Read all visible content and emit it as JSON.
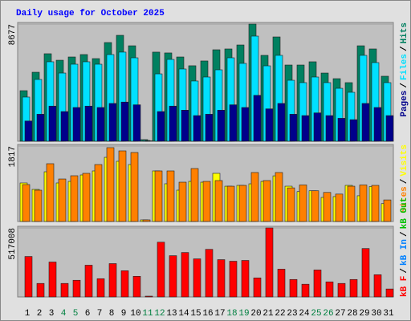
{
  "chart_data": [
    {
      "type": "bar",
      "title": "Daily usage for October 2025",
      "ylim": [
        0,
        8677
      ],
      "yticks": [
        8677
      ],
      "legend_separator": "/",
      "series": [
        {
          "name": "Pages",
          "color": "#00008b",
          "values": [
            1500,
            2000,
            2600,
            2200,
            2500,
            2600,
            2500,
            2800,
            2900,
            2700,
            30,
            2200,
            2600,
            2300,
            1900,
            2000,
            2300,
            2700,
            2500,
            3400,
            2400,
            2800,
            2000,
            1900,
            2100,
            1900,
            1700,
            1600,
            2800,
            2500,
            1900
          ]
        },
        {
          "name": "Files",
          "color": "#00e0ff",
          "values": [
            3270,
            4575,
            5885,
            5050,
            5705,
            5885,
            5705,
            6420,
            6600,
            6180,
            60,
            4990,
            6060,
            5350,
            4460,
            4755,
            5290,
            6180,
            5765,
            7785,
            5585,
            6360,
            4515,
            4340,
            4755,
            4340,
            3920,
            3625,
            6360,
            5825,
            4340
          ]
        },
        {
          "name": "Hits",
          "color": "#008060",
          "values": [
            3745,
            5110,
            6480,
            6000,
            6240,
            6420,
            6120,
            7310,
            7845,
            7070,
            120,
            6600,
            6540,
            6240,
            5590,
            5945,
            6775,
            6835,
            7130,
            8677,
            6360,
            7725,
            5645,
            5645,
            5885,
            5050,
            4635,
            4340,
            7070,
            6835,
            4815
          ]
        }
      ]
    },
    {
      "type": "bar",
      "ylim": [
        0,
        1817
      ],
      "yticks": [
        1817
      ],
      "legend_separator": "/",
      "series": [
        {
          "name": "Sites",
          "color": "#ff8000",
          "values": [
            890,
            754,
            1392,
            1024,
            1102,
            1160,
            1372,
            1779,
            1701,
            1662,
            39,
            1218,
            1218,
            947,
            1276,
            966,
            986,
            850,
            870,
            1180,
            986,
            1180,
            810,
            880,
            740,
            700,
            660,
            850,
            880,
            870,
            520
          ]
        },
        {
          "name": "Visits",
          "color": "#ffff00",
          "values": [
            928,
            773,
            1198,
            928,
            966,
            1121,
            1218,
            1546,
            1450,
            1372,
            39,
            1218,
            909,
            754,
            966,
            947,
            1160,
            850,
            870,
            908,
            966,
            1100,
            850,
            720,
            740,
            580,
            600,
            870,
            620,
            840,
            430
          ]
        }
      ]
    },
    {
      "type": "bar",
      "ylim": [
        0,
        517008
      ],
      "yticks": [
        517008
      ],
      "legend_separator": "/",
      "categories": [
        "1",
        "2",
        "3",
        "4",
        "5",
        "6",
        "7",
        "8",
        "9",
        "10",
        "11",
        "12",
        "13",
        "14",
        "15",
        "16",
        "17",
        "18",
        "19",
        "20",
        "21",
        "22",
        "23",
        "24",
        "25",
        "26",
        "27",
        "28",
        "29",
        "30",
        "31"
      ],
      "category_colors": [
        "#000000",
        "#000000",
        "#000000",
        "#008040",
        "#008040",
        "#000000",
        "#000000",
        "#000000",
        "#000000",
        "#000000",
        "#008040",
        "#008040",
        "#000000",
        "#000000",
        "#000000",
        "#000000",
        "#000000",
        "#008040",
        "#008040",
        "#000000",
        "#000000",
        "#000000",
        "#000000",
        "#000000",
        "#008040",
        "#008040",
        "#000000",
        "#000000",
        "#000000",
        "#000000",
        "#000000"
      ],
      "series": [
        {
          "name": "kB F",
          "color": "#ff0000",
          "values": [
            303090,
            101030,
            261490,
            101030,
            124800,
            237720,
            136690,
            249600,
            196120,
            154520,
            5940,
            410070,
            309030,
            332800,
            285260,
            356580,
            279320,
            267430,
            273380,
            142630,
            517008,
            208000,
            130750,
            95090,
            202060,
            112920,
            101030,
            130750,
            362520,
            166400,
            59430
          ]
        },
        {
          "name": "kB In",
          "color": "#0080ff"
        },
        {
          "name": "kB Out",
          "color": "#00c000"
        }
      ]
    }
  ]
}
